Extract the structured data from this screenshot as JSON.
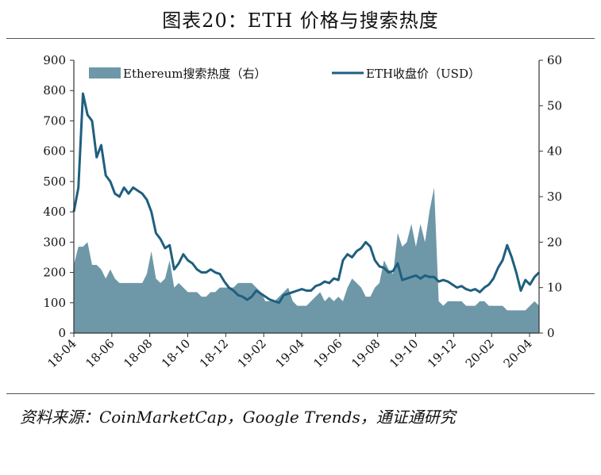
{
  "title": "图表20：ETH 价格与搜索热度",
  "source": "资料来源：CoinMarketCap，Google Trends，通证通研究",
  "colors": {
    "area": "#6e98a8",
    "line": "#1f5f7e",
    "axis": "#333333"
  },
  "chart_data": {
    "type": "area+line",
    "legend_position": "top",
    "grid": false,
    "x_labels": [
      "18-04",
      "18-06",
      "18-08",
      "18-10",
      "18-12",
      "19-02",
      "19-04",
      "19-06",
      "19-08",
      "19-10",
      "19-12",
      "20-02",
      "20-04"
    ],
    "x_range": [
      0,
      102
    ],
    "left_axis": {
      "ylim": [
        0,
        900
      ],
      "ticks": [
        "0",
        "100",
        "200",
        "300",
        "400",
        "500",
        "600",
        "700",
        "800",
        "900"
      ]
    },
    "right_axis": {
      "ylim": [
        0,
        60
      ],
      "ticks": [
        "0",
        "10",
        "20",
        "30",
        "40",
        "50",
        "60"
      ]
    },
    "series": [
      {
        "name": "Ethereum搜索热度（右）",
        "kind": "area",
        "axis": "right",
        "values": [
          15,
          19,
          19,
          20,
          15,
          15,
          14,
          12,
          14,
          12,
          11,
          11,
          11,
          11,
          11,
          11,
          13,
          18,
          12,
          11,
          12,
          16,
          10,
          11,
          10,
          9,
          9,
          9,
          8,
          8,
          9,
          9,
          10,
          10,
          10,
          10,
          11,
          11,
          11,
          11,
          10,
          9,
          7,
          7,
          7,
          8,
          9,
          10,
          7,
          6,
          6,
          6,
          7,
          8,
          9,
          7,
          8,
          7,
          8,
          7,
          10,
          12,
          11,
          10,
          8,
          8,
          10,
          11,
          16,
          14,
          13,
          22,
          19,
          20,
          24,
          19,
          24,
          20,
          27,
          32,
          7,
          6,
          7,
          7,
          7,
          7,
          6,
          6,
          6,
          7,
          7,
          6,
          6,
          6,
          6,
          5,
          5,
          5,
          5,
          5,
          6,
          7,
          6
        ]
      },
      {
        "name": "ETH收盘价（USD）",
        "kind": "line",
        "axis": "left",
        "values": [
          400,
          480,
          790,
          720,
          700,
          580,
          620,
          520,
          500,
          460,
          450,
          480,
          460,
          480,
          470,
          460,
          440,
          400,
          330,
          310,
          280,
          290,
          210,
          230,
          260,
          240,
          230,
          210,
          200,
          200,
          210,
          200,
          195,
          170,
          150,
          140,
          125,
          120,
          110,
          120,
          140,
          130,
          120,
          110,
          105,
          100,
          125,
          130,
          135,
          140,
          145,
          140,
          140,
          155,
          160,
          170,
          165,
          180,
          175,
          240,
          260,
          250,
          270,
          280,
          300,
          285,
          240,
          220,
          215,
          200,
          205,
          230,
          175,
          180,
          185,
          190,
          180,
          190,
          185,
          185,
          170,
          175,
          170,
          160,
          150,
          155,
          145,
          140,
          145,
          135,
          150,
          160,
          180,
          215,
          240,
          290,
          250,
          200,
          140,
          175,
          160,
          185,
          200
        ]
      }
    ]
  }
}
